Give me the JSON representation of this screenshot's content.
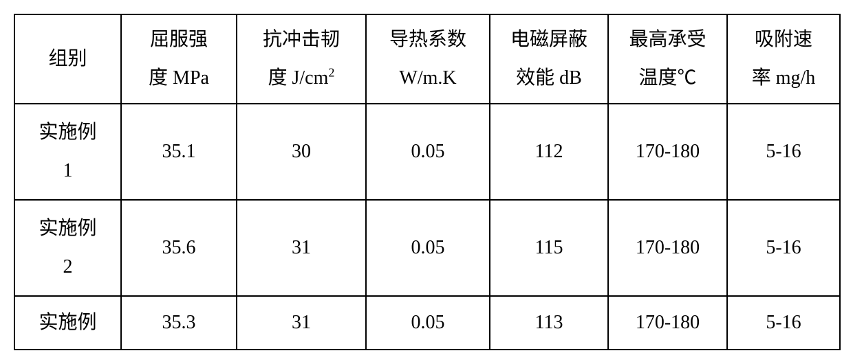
{
  "table": {
    "type": "table",
    "columns": [
      {
        "line1": "组别",
        "line2": ""
      },
      {
        "line1": "屈服强",
        "line2": "度 MPa"
      },
      {
        "line1": "抗冲击韧",
        "line2": "度 J/cm²"
      },
      {
        "line1": "导热系数",
        "line2": "W/m.K"
      },
      {
        "line1": "电磁屏蔽",
        "line2": "效能 dB"
      },
      {
        "line1": "最高承受",
        "line2": "温度℃"
      },
      {
        "line1": "吸附速",
        "line2": "率 mg/h"
      }
    ],
    "rows": [
      {
        "label_line1": "实施例",
        "label_line2": "1",
        "cells": [
          "35.1",
          "30",
          "0.05",
          "112",
          "170-180",
          "5-16"
        ],
        "height_class": "row-tall"
      },
      {
        "label_line1": "实施例",
        "label_line2": "2",
        "cells": [
          "35.6",
          "31",
          "0.05",
          "115",
          "170-180",
          "5-16"
        ],
        "height_class": "row-tall"
      },
      {
        "label_line1": "实施例",
        "label_line2": "",
        "cells": [
          "35.3",
          "31",
          "0.05",
          "113",
          "170-180",
          "5-16"
        ],
        "height_class": "row-short"
      }
    ],
    "border_color": "#000000",
    "background_color": "#ffffff",
    "text_color": "#000000",
    "font_size_pt": 21,
    "font_family": "SimSun"
  }
}
